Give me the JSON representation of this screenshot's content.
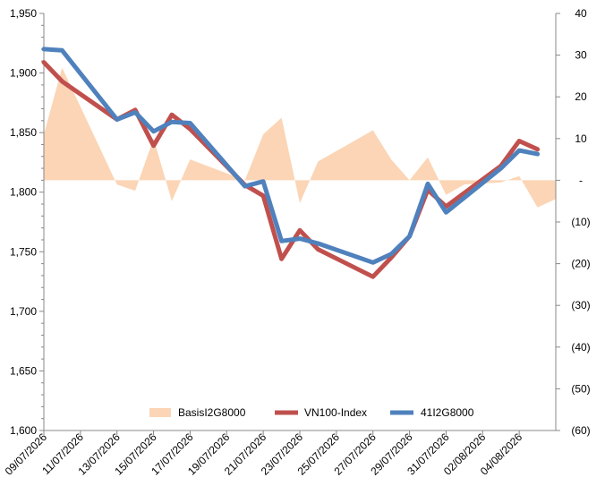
{
  "chart_data": {
    "type": "line",
    "title": "",
    "xlabel": "",
    "ylabel": "",
    "x": [
      "09/07/2026",
      "10/07/2026",
      "13/07/2026",
      "14/07/2026",
      "15/07/2026",
      "16/07/2026",
      "17/07/2026",
      "20/07/2026",
      "21/07/2026",
      "22/07/2026",
      "23/07/2026",
      "24/07/2026",
      "27/07/2026",
      "28/07/2026",
      "29/07/2026",
      "30/07/2026",
      "31/07/2026",
      "03/08/2026",
      "04/08/2026",
      "05/08/2026"
    ],
    "x_tick_labels": [
      "09/07/2026",
      "11/07/2026",
      "13/07/2026",
      "15/07/2026",
      "17/07/2026",
      "19/07/2026",
      "21/07/2026",
      "23/07/2026",
      "25/07/2026",
      "27/07/2026",
      "29/07/2026",
      "31/07/2026",
      "02/08/2026",
      "04/08/2026"
    ],
    "y_left": {
      "min": 1600,
      "max": 1950,
      "step": 50,
      "tick_labels": [
        "1,600",
        "1,650",
        "1,700",
        "1,750",
        "1,800",
        "1,850",
        "1,900",
        "1,950"
      ]
    },
    "y_right": {
      "min": -60,
      "max": 40,
      "step": 10,
      "tick_labels": [
        "(60)",
        "(50)",
        "(40)",
        "(30)",
        "(20)",
        "(10)",
        "-",
        "10",
        "20",
        "30",
        "40"
      ]
    },
    "series": [
      {
        "name": "BasisI2G8000",
        "kind": "area",
        "axis": "right",
        "color": "#fbd5b5",
        "points": [
          [
            "09/07/2026",
            11
          ],
          [
            "10/07/2026",
            27
          ],
          [
            "13/07/2026",
            -1
          ],
          [
            "14/07/2026",
            -2.5
          ],
          [
            "15/07/2026",
            10
          ],
          [
            "16/07/2026",
            -5
          ],
          [
            "17/07/2026",
            5
          ],
          [
            "20/07/2026",
            0
          ],
          [
            "21/07/2026",
            11
          ],
          [
            "22/07/2026",
            15
          ],
          [
            "23/07/2026",
            -5.5
          ],
          [
            "24/07/2026",
            4.5
          ],
          [
            "27/07/2026",
            12
          ],
          [
            "28/07/2026",
            5
          ],
          [
            "29/07/2026",
            0
          ],
          [
            "30/07/2026",
            5.5
          ],
          [
            "31/07/2026",
            -3.5
          ],
          [
            "01/08/2026",
            -1
          ],
          [
            "03/08/2026",
            -0.5
          ],
          [
            "04/08/2026",
            1
          ],
          [
            "05/08/2026",
            -6.5
          ],
          [
            "06/08/2026",
            -4.5
          ]
        ]
      },
      {
        "name": "VN100-Index",
        "kind": "line",
        "axis": "left",
        "color": "#c0504d",
        "points": [
          [
            "09/07/2026",
            1909
          ],
          [
            "10/07/2026",
            1893
          ],
          [
            "13/07/2026",
            1861
          ],
          [
            "14/07/2026",
            1869
          ],
          [
            "15/07/2026",
            1839
          ],
          [
            "16/07/2026",
            1865
          ],
          [
            "17/07/2026",
            1853
          ],
          [
            "20/07/2026",
            1806
          ],
          [
            "21/07/2026",
            1797
          ],
          [
            "22/07/2026",
            1744
          ],
          [
            "23/07/2026",
            1768
          ],
          [
            "24/07/2026",
            1752
          ],
          [
            "27/07/2026",
            1729
          ],
          [
            "28/07/2026",
            1745
          ],
          [
            "29/07/2026",
            1763
          ],
          [
            "30/07/2026",
            1802
          ],
          [
            "31/07/2026",
            1788
          ],
          [
            "03/08/2026",
            1822
          ],
          [
            "04/08/2026",
            1843
          ],
          [
            "05/08/2026",
            1836
          ]
        ]
      },
      {
        "name": "41I2G8000",
        "kind": "line",
        "axis": "left",
        "color": "#4f81bd",
        "points": [
          [
            "09/07/2026",
            1920
          ],
          [
            "10/07/2026",
            1919
          ],
          [
            "13/07/2026",
            1861
          ],
          [
            "14/07/2026",
            1867
          ],
          [
            "15/07/2026",
            1851
          ],
          [
            "16/07/2026",
            1859
          ],
          [
            "17/07/2026",
            1858
          ],
          [
            "20/07/2026",
            1805
          ],
          [
            "21/07/2026",
            1809
          ],
          [
            "22/07/2026",
            1759
          ],
          [
            "23/07/2026",
            1761
          ],
          [
            "24/07/2026",
            1757
          ],
          [
            "27/07/2026",
            1741
          ],
          [
            "28/07/2026",
            1748
          ],
          [
            "29/07/2026",
            1763
          ],
          [
            "30/07/2026",
            1807
          ],
          [
            "31/07/2026",
            1783
          ],
          [
            "03/08/2026",
            1820
          ],
          [
            "04/08/2026",
            1835
          ],
          [
            "05/08/2026",
            1832
          ]
        ]
      }
    ],
    "legend": {
      "placement": "bottom-center"
    },
    "grid": false
  }
}
